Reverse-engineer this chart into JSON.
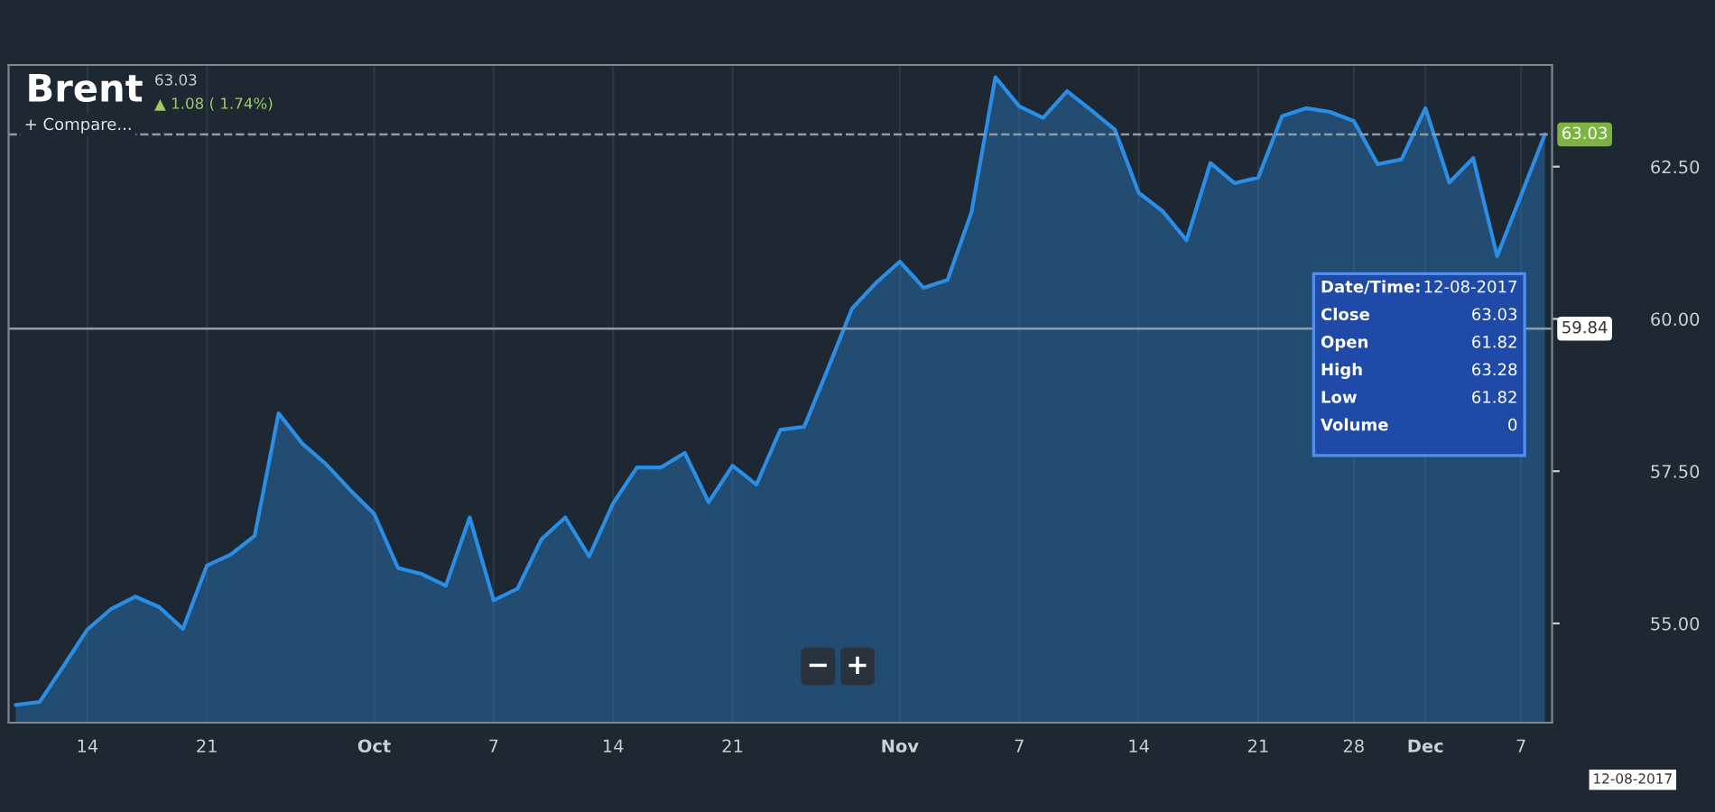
{
  "chart_data": {
    "type": "area",
    "title": "Brent",
    "subtitle": "63.03",
    "annotations": [
      "▲ 1.08 ( 1.74%)",
      "+ Compare...",
      "−",
      "+",
      "Date/Time:",
      "12-08-2017",
      "Close",
      "63.03",
      "Open",
      "61.82",
      "High",
      "63.28",
      "Low",
      "61.82",
      "Volume",
      "0",
      "12-08-2017"
    ],
    "categories": [
      null,
      null,
      null,
      "14",
      null,
      null,
      null,
      null,
      "21",
      null,
      null,
      null,
      null,
      null,
      null,
      "Oct",
      null,
      null,
      null,
      null,
      "7",
      null,
      null,
      null,
      null,
      "14",
      null,
      null,
      null,
      null,
      "21",
      null,
      null,
      null,
      null,
      null,
      null,
      "Nov",
      null,
      null,
      null,
      null,
      "7",
      null,
      null,
      null,
      null,
      "14",
      null,
      null,
      null,
      null,
      "21",
      null,
      null,
      null,
      "28",
      null,
      null,
      "Dec",
      null,
      null,
      null,
      "7",
      null
    ],
    "series": [
      {
        "color": "#2b8ee6",
        "values": [
          53.66,
          53.71,
          54.3,
          54.9,
          55.24,
          55.44,
          55.27,
          54.91,
          55.95,
          56.13,
          56.44,
          58.45,
          57.95,
          57.61,
          57.19,
          56.8,
          55.91,
          55.81,
          55.62,
          56.74,
          55.38,
          55.57,
          56.38,
          56.74,
          56.1,
          56.97,
          57.56,
          57.56,
          57.8,
          56.99,
          57.59,
          57.28,
          58.18,
          58.23,
          59.19,
          60.17,
          60.59,
          60.94,
          60.51,
          60.64,
          61.75,
          63.97,
          63.49,
          63.3,
          63.74,
          63.43,
          63.11,
          62.07,
          61.77,
          61.29,
          62.56,
          62.23,
          62.32,
          63.33,
          63.46,
          63.4,
          63.25,
          62.54,
          62.62,
          63.46,
          62.24,
          62.64,
          61.03,
          62.03,
          63.03
        ]
      }
    ],
    "ylim": [
      53.37,
      64.17
    ],
    "yticks": [
      {
        "value": 55,
        "label": "55.00"
      },
      {
        "value": 57.5,
        "label": "57.50"
      },
      {
        "value": 60,
        "label": "60.00"
      },
      {
        "value": 62.5,
        "label": "62.50"
      }
    ],
    "ref_lines": [
      {
        "axis": "y",
        "value": 63.03,
        "label": "63.03",
        "color": "#8f9ba6",
        "line_style": "dashed"
      },
      {
        "axis": "y",
        "value": 59.84,
        "label": "59.84",
        "color": "#8f9ba6",
        "line_style": "solid"
      }
    ],
    "grid": "x"
  }
}
